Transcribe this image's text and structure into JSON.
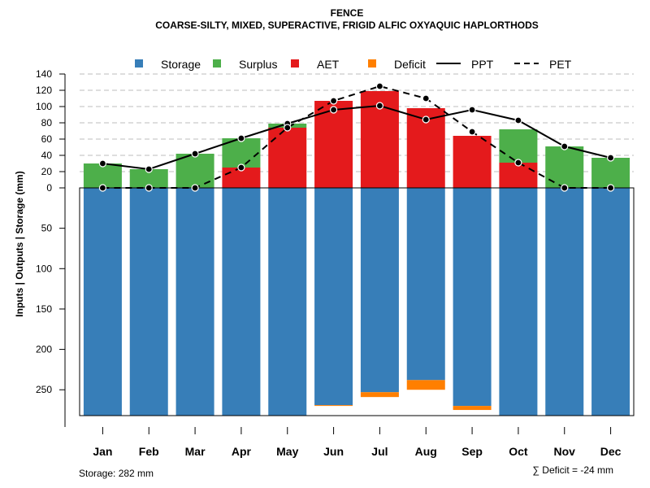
{
  "chart_data": {
    "type": "bar",
    "title": "FENCE",
    "subtitle": "COARSE-SILTY, MIXED, SUPERACTIVE, FRIGID ALFIC OXYAQUIC HAPLORTHODS",
    "ylabel": "Inputs | Outputs | Storage     (mm)",
    "categories": [
      "Jan",
      "Feb",
      "Mar",
      "Apr",
      "May",
      "Jun",
      "Jul",
      "Aug",
      "Sep",
      "Oct",
      "Nov",
      "Dec"
    ],
    "yticks_above": [
      "0",
      "20",
      "40",
      "60",
      "80",
      "100",
      "120",
      "140"
    ],
    "yticks_below": [
      "50",
      "100",
      "150",
      "200",
      "250"
    ],
    "ylim_above": [
      0,
      140
    ],
    "ylim_below": [
      0,
      282
    ],
    "legend": {
      "storage": "Storage",
      "surplus": "Surplus",
      "aet": "AET",
      "deficit": "Deficit",
      "ppt": "PPT",
      "pet": "PET"
    },
    "colors": {
      "storage": "#377EB8",
      "surplus": "#4DAF4A",
      "aet": "#E41A1C",
      "deficit": "#FF7F00",
      "grid": "#BEBEBE"
    },
    "series": [
      {
        "name": "Storage",
        "values": [
          282,
          282,
          282,
          282,
          282,
          269,
          253,
          238,
          270,
          282,
          282,
          282
        ]
      },
      {
        "name": "Deficit",
        "values": [
          0,
          0,
          0,
          0,
          0,
          1,
          6,
          12,
          5,
          0,
          0,
          0
        ]
      },
      {
        "name": "AET",
        "values": [
          0,
          0,
          0,
          25,
          74,
          107,
          119,
          98,
          64,
          31,
          0,
          0
        ]
      },
      {
        "name": "Surplus",
        "values": [
          30,
          23,
          42,
          36,
          5,
          0,
          0,
          0,
          0,
          41,
          51,
          37
        ]
      },
      {
        "name": "PPT",
        "values": [
          30,
          23,
          42,
          61,
          79,
          96,
          101,
          84,
          96,
          83,
          51,
          37
        ]
      },
      {
        "name": "PET",
        "values": [
          0,
          0,
          0,
          25,
          74,
          107,
          125,
          110,
          69,
          31,
          0,
          0
        ]
      }
    ]
  },
  "notes": {
    "storage": "Storage: 282 mm",
    "deficit": "∑ Deficit = -24 mm"
  }
}
